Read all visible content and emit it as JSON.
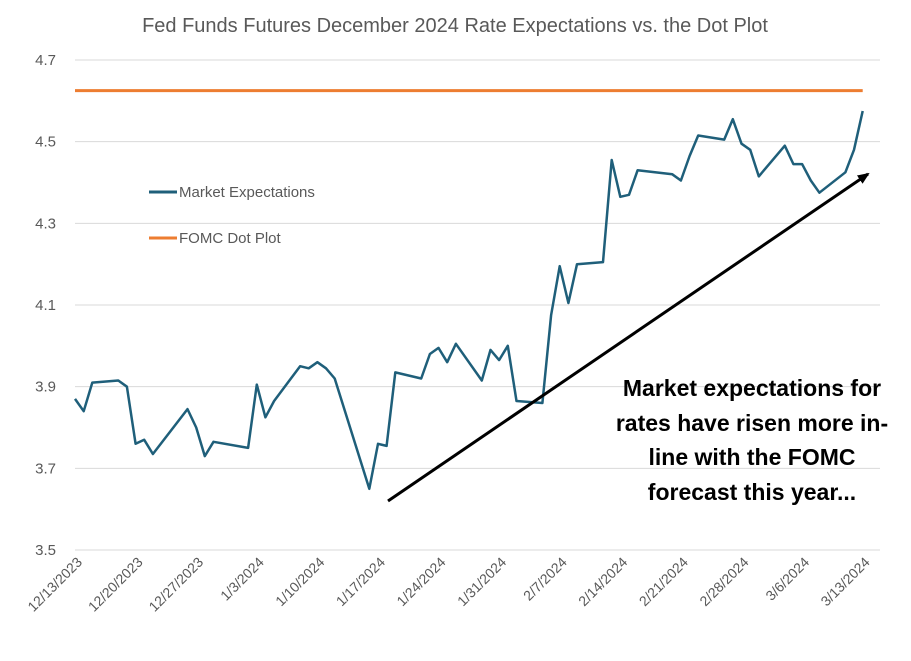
{
  "chart_data": {
    "type": "line",
    "title": "Fed Funds Futures December 2024 Rate Expectations vs. the Dot Plot",
    "xlabel": "",
    "ylabel": "",
    "ylim": [
      3.5,
      4.7
    ],
    "yticks": [
      "3.5",
      "3.7",
      "3.9",
      "4.1",
      "4.3",
      "4.5",
      "4.7"
    ],
    "xlim": [
      "2023-12-13",
      "2024-03-15"
    ],
    "xticks": [
      {
        "date": "2023-12-13",
        "label": "12/13/2023"
      },
      {
        "date": "2023-12-20",
        "label": "12/20/2023"
      },
      {
        "date": "2023-12-27",
        "label": "12/27/2023"
      },
      {
        "date": "2024-01-03",
        "label": "1/3/2024"
      },
      {
        "date": "2024-01-10",
        "label": "1/10/2024"
      },
      {
        "date": "2024-01-17",
        "label": "1/17/2024"
      },
      {
        "date": "2024-01-24",
        "label": "1/24/2024"
      },
      {
        "date": "2024-01-31",
        "label": "1/31/2024"
      },
      {
        "date": "2024-02-07",
        "label": "2/7/2024"
      },
      {
        "date": "2024-02-14",
        "label": "2/14/2024"
      },
      {
        "date": "2024-02-21",
        "label": "2/21/2024"
      },
      {
        "date": "2024-02-28",
        "label": "2/28/2024"
      },
      {
        "date": "2024-03-06",
        "label": "3/6/2024"
      },
      {
        "date": "2024-03-13",
        "label": "3/13/2024"
      }
    ],
    "grid": true,
    "legend_position": "upper-left",
    "series": [
      {
        "name": "Market Expectations",
        "color": "#1f5f7a",
        "points": [
          [
            "2023-12-13",
            3.87
          ],
          [
            "2023-12-14",
            3.84
          ],
          [
            "2023-12-15",
            3.91
          ],
          [
            "2023-12-18",
            3.915
          ],
          [
            "2023-12-19",
            3.9
          ],
          [
            "2023-12-20",
            3.76
          ],
          [
            "2023-12-21",
            3.77
          ],
          [
            "2023-12-22",
            3.735
          ],
          [
            "2023-12-26",
            3.845
          ],
          [
            "2023-12-27",
            3.8
          ],
          [
            "2023-12-28",
            3.73
          ],
          [
            "2023-12-29",
            3.765
          ],
          [
            "2024-01-02",
            3.75
          ],
          [
            "2024-01-03",
            3.905
          ],
          [
            "2024-01-04",
            3.825
          ],
          [
            "2024-01-05",
            3.865
          ],
          [
            "2024-01-08",
            3.95
          ],
          [
            "2024-01-09",
            3.945
          ],
          [
            "2024-01-10",
            3.96
          ],
          [
            "2024-01-11",
            3.945
          ],
          [
            "2024-01-12",
            3.92
          ],
          [
            "2024-01-16",
            3.65
          ],
          [
            "2024-01-17",
            3.76
          ],
          [
            "2024-01-18",
            3.755
          ],
          [
            "2024-01-19",
            3.935
          ],
          [
            "2024-01-22",
            3.92
          ],
          [
            "2024-01-23",
            3.98
          ],
          [
            "2024-01-24",
            3.995
          ],
          [
            "2024-01-25",
            3.96
          ],
          [
            "2024-01-26",
            4.005
          ],
          [
            "2024-01-29",
            3.915
          ],
          [
            "2024-01-30",
            3.99
          ],
          [
            "2024-01-31",
            3.965
          ],
          [
            "2024-02-01",
            4.0
          ],
          [
            "2024-02-02",
            3.865
          ],
          [
            "2024-02-05",
            3.86
          ],
          [
            "2024-02-06",
            4.075
          ],
          [
            "2024-02-07",
            4.195
          ],
          [
            "2024-02-08",
            4.105
          ],
          [
            "2024-02-09",
            4.2
          ],
          [
            "2024-02-12",
            4.205
          ],
          [
            "2024-02-13",
            4.455
          ],
          [
            "2024-02-14",
            4.365
          ],
          [
            "2024-02-15",
            4.37
          ],
          [
            "2024-02-16",
            4.43
          ],
          [
            "2024-02-20",
            4.42
          ],
          [
            "2024-02-21",
            4.405
          ],
          [
            "2024-02-22",
            4.465
          ],
          [
            "2024-02-23",
            4.515
          ],
          [
            "2024-02-26",
            4.505
          ],
          [
            "2024-02-27",
            4.555
          ],
          [
            "2024-02-28",
            4.495
          ],
          [
            "2024-02-29",
            4.48
          ],
          [
            "2024-03-01",
            4.415
          ],
          [
            "2024-03-04",
            4.49
          ],
          [
            "2024-03-05",
            4.445
          ],
          [
            "2024-03-06",
            4.445
          ],
          [
            "2024-03-07",
            4.405
          ],
          [
            "2024-03-08",
            4.375
          ],
          [
            "2024-03-11",
            4.425
          ],
          [
            "2024-03-12",
            4.48
          ],
          [
            "2024-03-13",
            4.575
          ]
        ]
      },
      {
        "name": "FOMC Dot Plot",
        "color": "#ed7d31",
        "points": [
          [
            "2023-12-13",
            4.625
          ],
          [
            "2024-03-13",
            4.625
          ]
        ]
      }
    ],
    "annotation": {
      "lines": [
        "Market expectations for",
        "rates have risen more in-",
        "line with the FOMC",
        "forecast this year..."
      ]
    }
  }
}
